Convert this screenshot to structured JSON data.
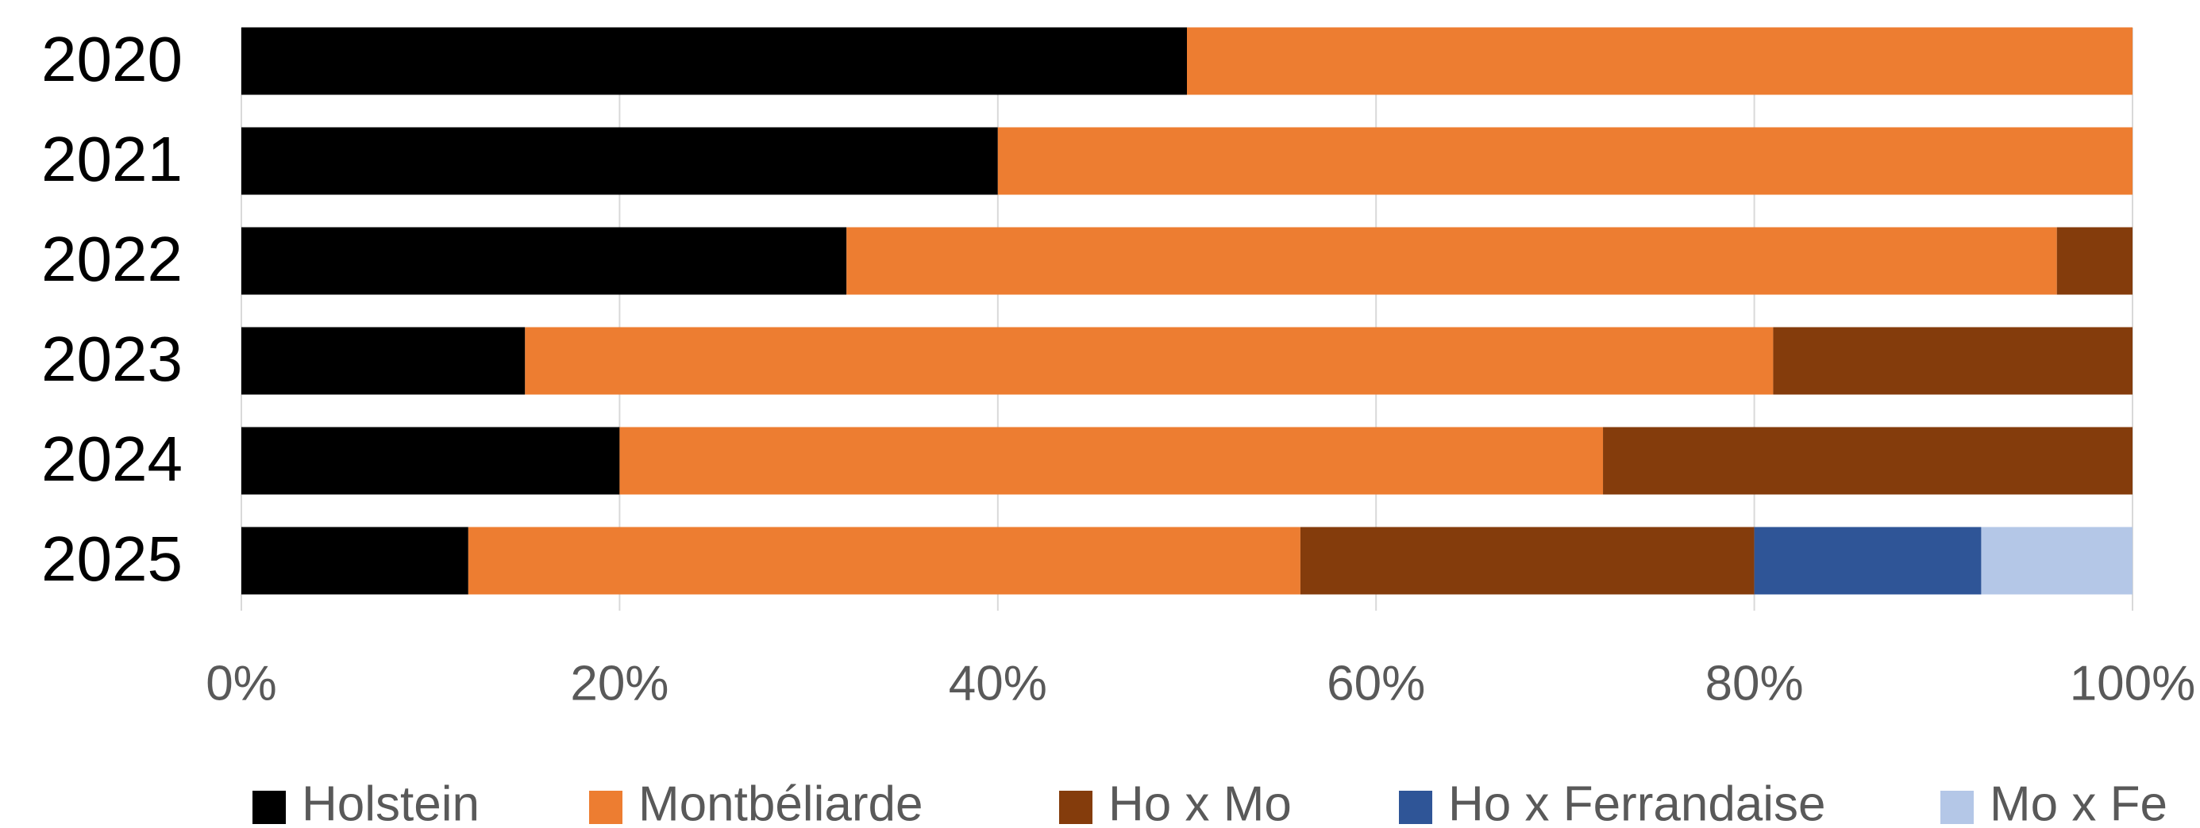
{
  "chart_data": {
    "type": "stacked_bar_horizontal",
    "categories": [
      "2020",
      "2021",
      "2022",
      "2023",
      "2024",
      "2025"
    ],
    "series": [
      {
        "name": "Holstein",
        "color": "#000000",
        "values": [
          50,
          40,
          32,
          15,
          20,
          12
        ]
      },
      {
        "name": "Montbéliarde",
        "color": "#ed7d31",
        "values": [
          50,
          60,
          64,
          66,
          52,
          44
        ]
      },
      {
        "name": "Ho x Mo",
        "color": "#843c0c",
        "values": [
          0,
          0,
          4,
          19,
          28,
          24
        ]
      },
      {
        "name": "Ho x Ferrandaise",
        "color": "#2f5597",
        "values": [
          0,
          0,
          0,
          0,
          0,
          12
        ]
      },
      {
        "name": "Mo x Fe",
        "color": "#b4c7e7",
        "values": [
          0,
          0,
          0,
          0,
          0,
          8
        ]
      }
    ],
    "xlim": [
      0,
      100
    ],
    "xticks": [
      {
        "value": 0,
        "label": "0%"
      },
      {
        "value": 20,
        "label": "20%"
      },
      {
        "value": 40,
        "label": "40%"
      },
      {
        "value": 60,
        "label": "60%"
      },
      {
        "value": 80,
        "label": "80%"
      },
      {
        "value": 100,
        "label": "100%"
      }
    ],
    "grid": true,
    "legend": "bottom"
  }
}
